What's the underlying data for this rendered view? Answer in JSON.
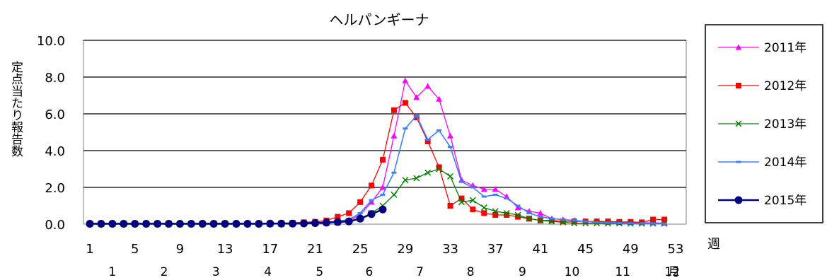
{
  "chart_data": {
    "type": "line",
    "title": "ヘルパンギーナ",
    "ylabel": "定点当たり報告数",
    "x_unit_label": "週",
    "month_unit_label": "月",
    "ylim": [
      0,
      10
    ],
    "yticks": [
      "0.0",
      "2.0",
      "4.0",
      "6.0",
      "8.0",
      "10.0"
    ],
    "xlim": [
      1,
      53
    ],
    "xticks": [
      "1",
      "5",
      "9",
      "13",
      "17",
      "21",
      "25",
      "29",
      "33",
      "37",
      "41",
      "45",
      "49",
      "53"
    ],
    "months": [
      {
        "label": "1",
        "week": 3
      },
      {
        "label": "2",
        "week": 7.6
      },
      {
        "label": "3",
        "week": 12.2
      },
      {
        "label": "4",
        "week": 16.8
      },
      {
        "label": "5",
        "week": 21.4
      },
      {
        "label": "6",
        "week": 25.8
      },
      {
        "label": "7",
        "week": 30.3
      },
      {
        "label": "8",
        "week": 34.8
      },
      {
        "label": "9",
        "week": 39.4
      },
      {
        "label": "10",
        "week": 43.8
      },
      {
        "label": "11",
        "week": 48.3
      },
      {
        "label": "12",
        "week": 52.7
      }
    ],
    "grid": true,
    "legend_position": "right",
    "series": [
      {
        "name": "2011年",
        "color": "#ff00ff",
        "marker": "triangle",
        "line_width": 1.3,
        "values": [
          0.02,
          0.02,
          0.02,
          0.02,
          0.02,
          0.02,
          0.02,
          0.02,
          0.02,
          0.02,
          0.02,
          0.02,
          0.02,
          0.02,
          0.02,
          0.02,
          0.03,
          0.03,
          0.04,
          0.05,
          0.08,
          0.1,
          0.15,
          0.2,
          0.5,
          1.2,
          2.0,
          4.8,
          7.8,
          6.9,
          7.5,
          6.8,
          4.8,
          2.4,
          2.1,
          1.9,
          1.9,
          1.5,
          0.9,
          0.7,
          0.6,
          0.3,
          0.25,
          0.2,
          0.15,
          0.12,
          0.1,
          0.1,
          0.1,
          0.08,
          0.07,
          0.06
        ]
      },
      {
        "name": "2012年",
        "color": "#ff0000",
        "marker": "square",
        "line_width": 1.3,
        "values": [
          0.02,
          0.02,
          0.02,
          0.02,
          0.02,
          0.02,
          0.02,
          0.02,
          0.02,
          0.02,
          0.02,
          0.02,
          0.02,
          0.02,
          0.02,
          0.02,
          0.03,
          0.05,
          0.07,
          0.1,
          0.13,
          0.2,
          0.4,
          0.6,
          1.2,
          2.1,
          3.5,
          6.2,
          6.6,
          5.8,
          4.5,
          3.1,
          1.0,
          1.4,
          0.8,
          0.6,
          0.5,
          0.5,
          0.4,
          0.3,
          0.2,
          0.2,
          0.15,
          0.15,
          0.15,
          0.15,
          0.15,
          0.12,
          0.12,
          0.1,
          0.25,
          0.25
        ]
      },
      {
        "name": "2013年",
        "color": "#008000",
        "marker": "x",
        "line_width": 1.3,
        "values": [
          0.02,
          0.02,
          0.02,
          0.02,
          0.02,
          0.02,
          0.02,
          0.02,
          0.02,
          0.02,
          0.02,
          0.02,
          0.02,
          0.02,
          0.02,
          0.02,
          0.02,
          0.02,
          0.03,
          0.04,
          0.05,
          0.07,
          0.1,
          0.15,
          0.3,
          0.6,
          1.0,
          1.6,
          2.4,
          2.5,
          2.8,
          3.0,
          2.6,
          1.2,
          1.3,
          0.9,
          0.7,
          0.6,
          0.5,
          0.3,
          0.2,
          0.15,
          0.1,
          0.05,
          0.05,
          0.05,
          0.04,
          0.04,
          0.03,
          0.03,
          0.03,
          0.03
        ]
      },
      {
        "name": "2014年",
        "color": "#3d7fff",
        "marker": "dash",
        "line_width": 1.6,
        "values": [
          0.02,
          0.02,
          0.02,
          0.02,
          0.02,
          0.02,
          0.02,
          0.02,
          0.02,
          0.02,
          0.02,
          0.02,
          0.02,
          0.02,
          0.02,
          0.02,
          0.03,
          0.03,
          0.04,
          0.05,
          0.08,
          0.1,
          0.15,
          0.25,
          0.6,
          1.3,
          1.6,
          2.8,
          5.2,
          5.9,
          4.6,
          5.1,
          4.2,
          2.3,
          2.0,
          1.5,
          1.6,
          1.4,
          1.0,
          0.6,
          0.4,
          0.3,
          0.25,
          0.2,
          0.15,
          0.1,
          0.08,
          0.06,
          0.05,
          0.04,
          0.04,
          0.03
        ]
      },
      {
        "name": "2015年",
        "color": "#000080",
        "marker": "circle",
        "line_width": 2.6,
        "values": [
          0.02,
          0.02,
          0.02,
          0.02,
          0.02,
          0.02,
          0.02,
          0.02,
          0.02,
          0.02,
          0.02,
          0.02,
          0.02,
          0.02,
          0.02,
          0.02,
          0.03,
          0.03,
          0.03,
          0.04,
          0.06,
          0.08,
          0.12,
          0.15,
          0.3,
          0.55,
          0.8
        ]
      }
    ]
  }
}
